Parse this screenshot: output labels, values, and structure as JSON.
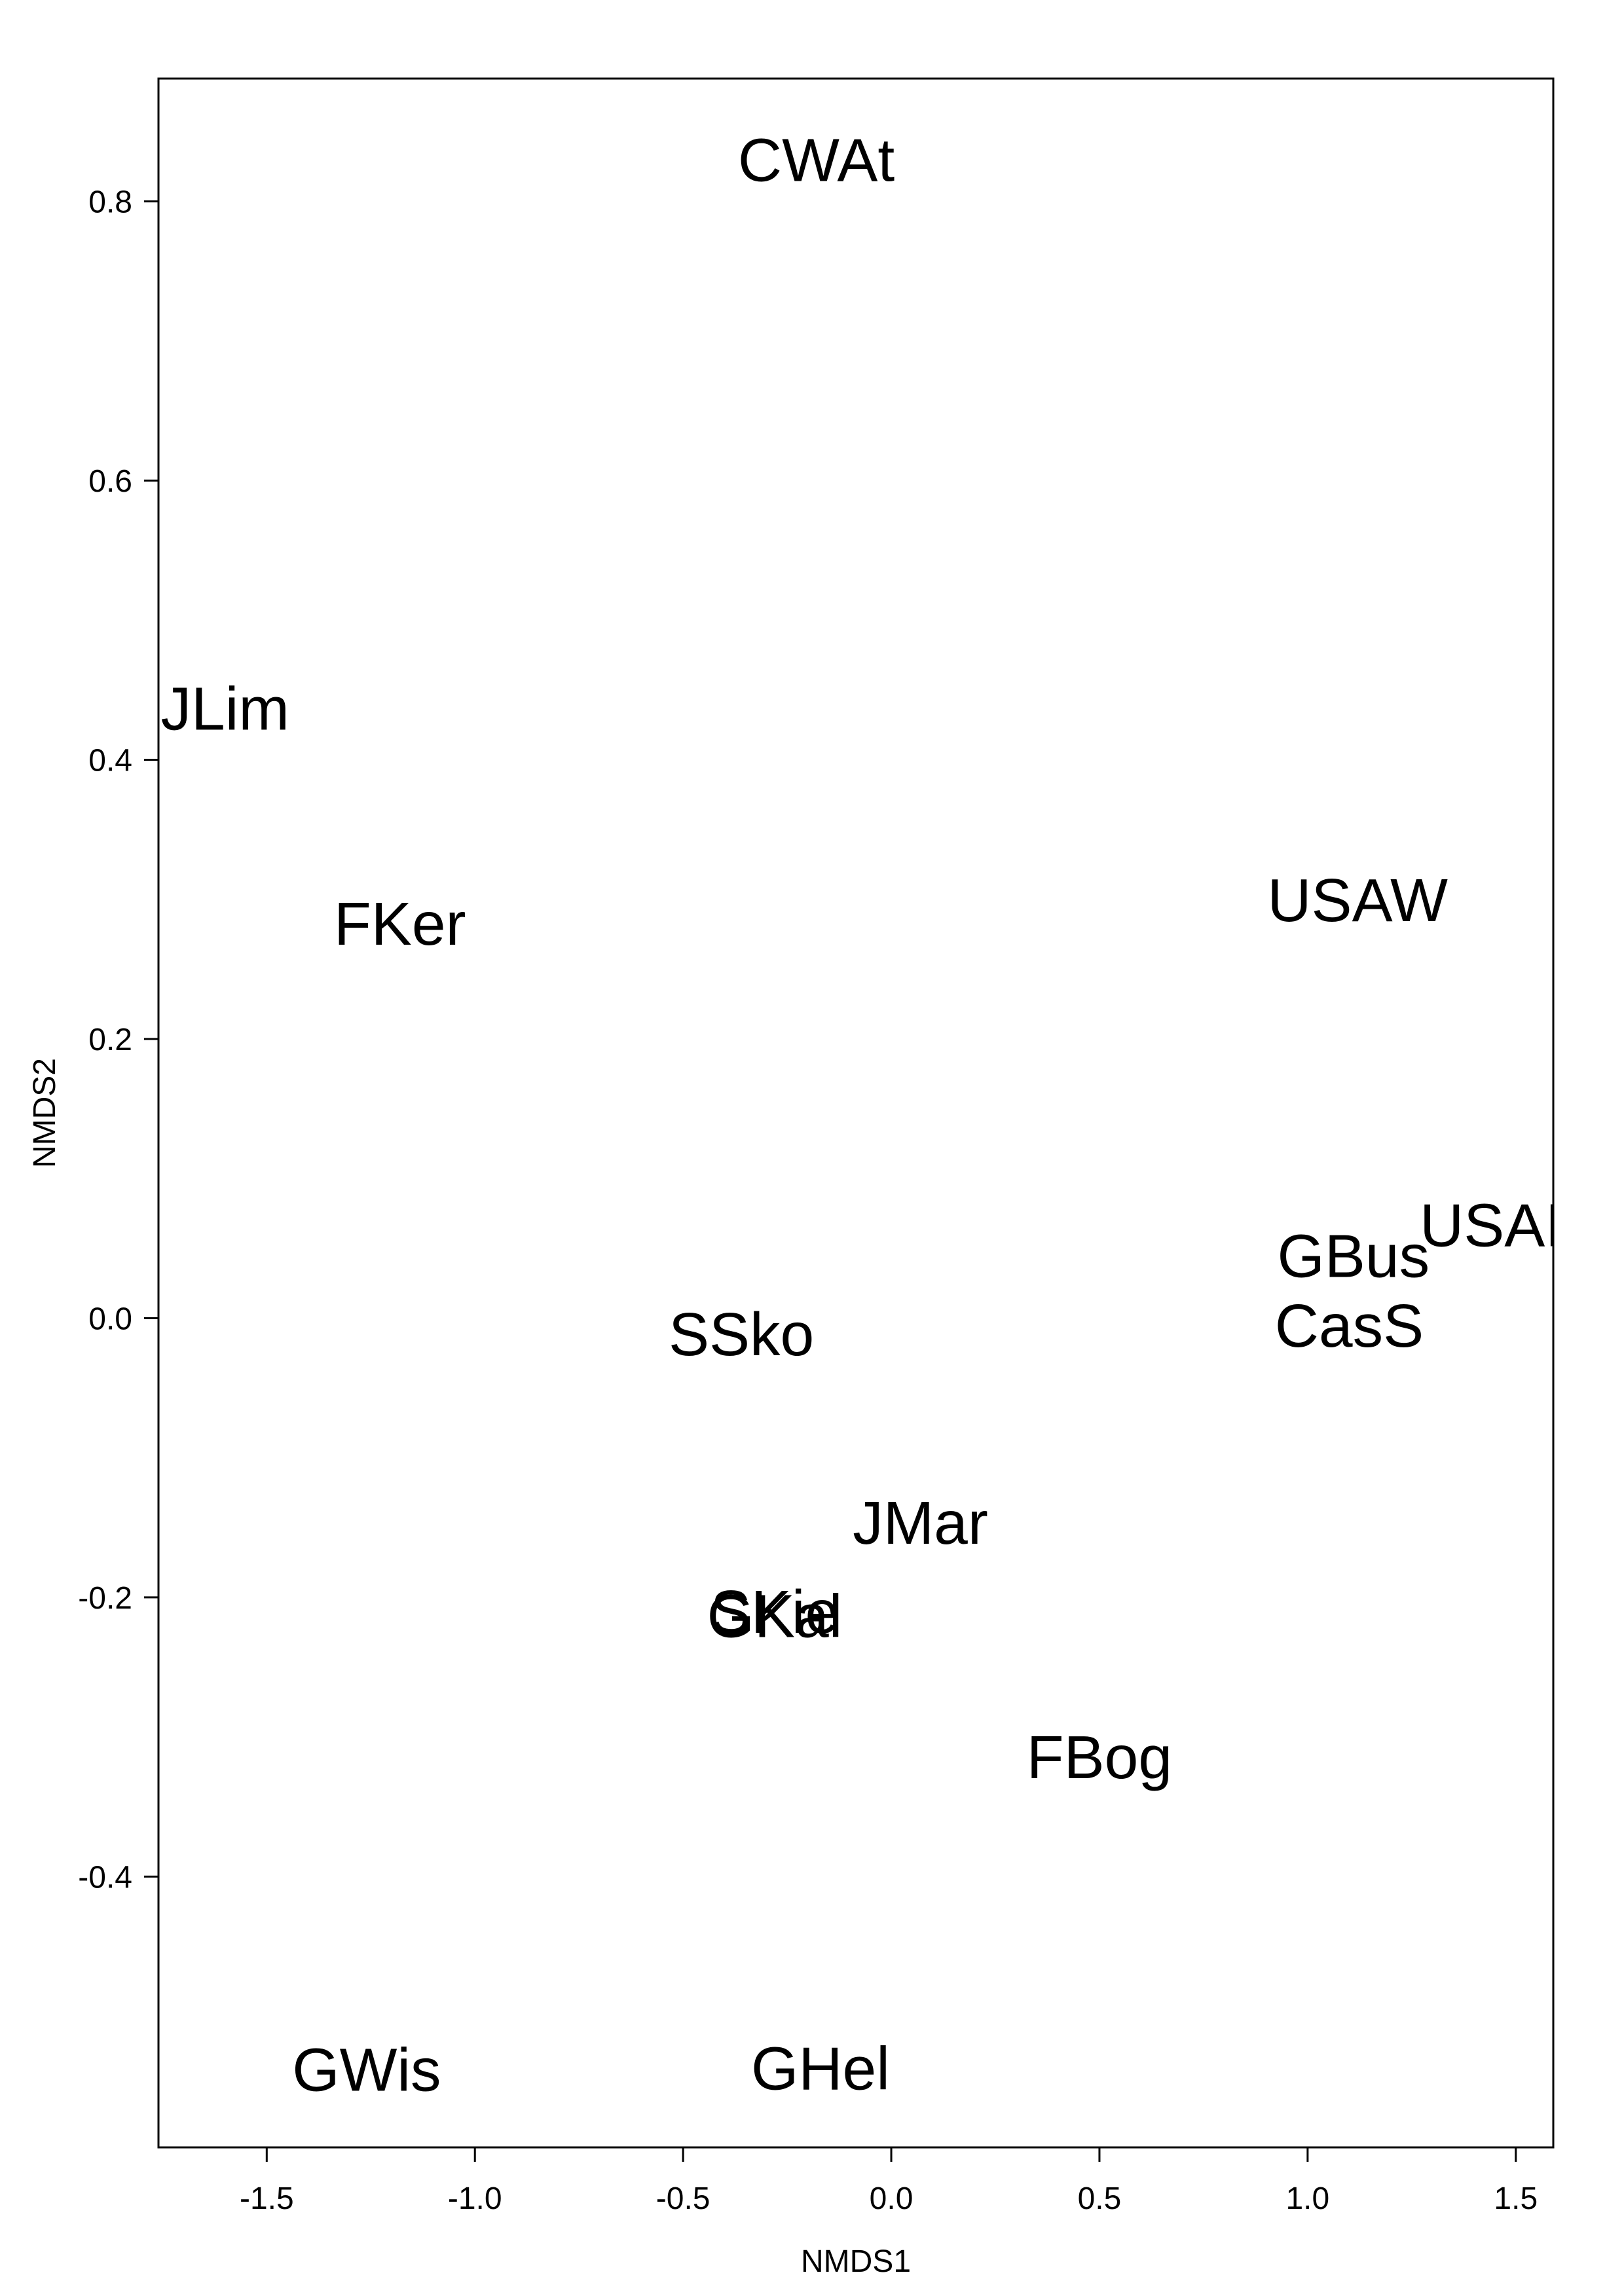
{
  "chart_data": {
    "type": "scatter",
    "title": "",
    "xlabel": "NMDS1",
    "ylabel": "NMDS2",
    "xlim": [
      -1.76,
      1.59
    ],
    "ylim": [
      -0.594,
      0.888
    ],
    "x_ticks": [
      -1.5,
      -1.0,
      -0.5,
      0.0,
      0.5,
      1.0,
      1.5
    ],
    "x_tick_labels": [
      "-1.5",
      "-1.0",
      "-0.5",
      "0.0",
      "0.5",
      "1.0",
      "1.5"
    ],
    "y_ticks": [
      -0.4,
      -0.2,
      0.0,
      0.2,
      0.4,
      0.6,
      0.8
    ],
    "y_tick_labels": [
      "-0.4",
      "-0.2",
      "0.0",
      "0.2",
      "0.4",
      "0.6",
      "0.8"
    ],
    "grid": false,
    "legend": "none",
    "colors": {
      "text": "#000000",
      "axes": "#000000",
      "background": "#ffffff"
    },
    "points": [
      {
        "label": "CWAt",
        "x": -0.18,
        "y": 0.83
      },
      {
        "label": "JLim",
        "x": -1.6,
        "y": 0.437
      },
      {
        "label": "FKer",
        "x": -1.18,
        "y": 0.283
      },
      {
        "label": "USAW",
        "x": 1.12,
        "y": 0.3
      },
      {
        "label": "USAI",
        "x": 1.44,
        "y": 0.067
      },
      {
        "label": "GBus",
        "x": 1.11,
        "y": 0.045
      },
      {
        "label": "CasS",
        "x": 1.1,
        "y": -0.005
      },
      {
        "label": "SSko",
        "x": -0.36,
        "y": -0.011
      },
      {
        "label": "JMar",
        "x": 0.07,
        "y": -0.146
      },
      {
        "label": "SKie",
        "x": -0.28,
        "y": -0.21
      },
      {
        "label": "GKal",
        "x": -0.28,
        "y": -0.213
      },
      {
        "label": "FBog",
        "x": 0.5,
        "y": -0.314
      },
      {
        "label": "GWis",
        "x": -1.26,
        "y": -0.538
      },
      {
        "label": "GHel",
        "x": -0.17,
        "y": -0.537
      }
    ]
  }
}
